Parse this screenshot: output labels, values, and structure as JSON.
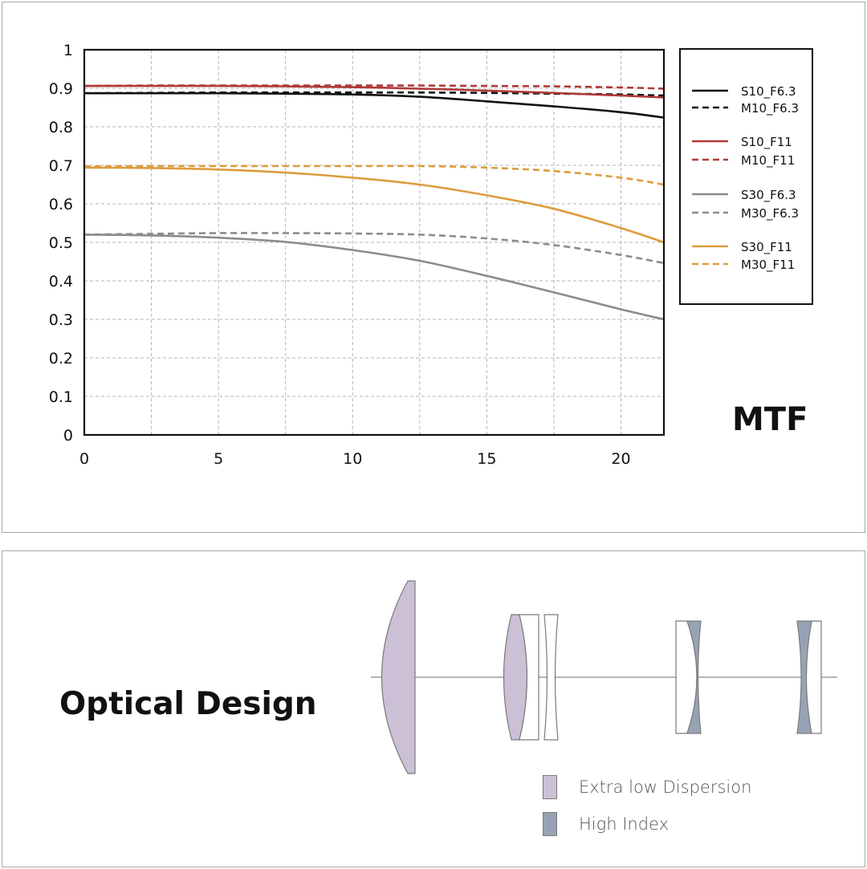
{
  "mtf_title": "MTF",
  "optical_title": "Optical Design",
  "chart_data": {
    "type": "line",
    "title": "MTF",
    "xlabel": "",
    "ylabel": "",
    "xlim": [
      0,
      21.6
    ],
    "ylim": [
      0,
      1
    ],
    "x_ticks": [
      "0",
      "5",
      "10",
      "15",
      "20"
    ],
    "x_tick_values": [
      0,
      5,
      10,
      15,
      20
    ],
    "y_ticks": [
      "0",
      "0.1",
      "0.2",
      "0.3",
      "0.4",
      "0.5",
      "0.6",
      "0.7",
      "0.8",
      "0.9",
      "1"
    ],
    "y_tick_values": [
      0,
      0.1,
      0.2,
      0.3,
      0.4,
      0.5,
      0.6,
      0.7,
      0.8,
      0.9,
      1
    ],
    "x_grid": [
      2.5,
      5,
      7.5,
      10,
      12.5,
      15,
      17.5,
      20
    ],
    "grid": true,
    "legend_placement": "right",
    "x": [
      0,
      2.5,
      5,
      7.5,
      10,
      12.5,
      15,
      17.5,
      20,
      21.6
    ],
    "series": [
      {
        "name": "S10_F6.3",
        "color": "#111111",
        "dashed": false,
        "values": [
          0.887,
          0.887,
          0.887,
          0.886,
          0.884,
          0.878,
          0.866,
          0.853,
          0.838,
          0.824
        ]
      },
      {
        "name": "M10_F6.3",
        "color": "#111111",
        "dashed": true,
        "values": [
          0.887,
          0.888,
          0.889,
          0.889,
          0.889,
          0.889,
          0.888,
          0.886,
          0.884,
          0.881
        ]
      },
      {
        "name": "S10_F11",
        "color": "#b03a36",
        "dashed": false,
        "values": [
          0.906,
          0.906,
          0.906,
          0.905,
          0.903,
          0.899,
          0.894,
          0.888,
          0.881,
          0.876
        ]
      },
      {
        "name": "M10_F11",
        "color": "#b03a36",
        "dashed": true,
        "values": [
          0.906,
          0.907,
          0.907,
          0.907,
          0.907,
          0.907,
          0.906,
          0.905,
          0.902,
          0.899
        ]
      },
      {
        "name": "S30_F6.3",
        "color": "#8c8c8c",
        "dashed": false,
        "values": [
          0.52,
          0.518,
          0.512,
          0.501,
          0.48,
          0.452,
          0.413,
          0.37,
          0.326,
          0.3
        ]
      },
      {
        "name": "M30_F6.3",
        "color": "#8c8c8c",
        "dashed": true,
        "values": [
          0.52,
          0.522,
          0.524,
          0.524,
          0.523,
          0.52,
          0.51,
          0.493,
          0.467,
          0.446
        ]
      },
      {
        "name": "S30_F11",
        "color": "#dd9c3c",
        "dashed": false,
        "values": [
          0.694,
          0.693,
          0.689,
          0.681,
          0.668,
          0.65,
          0.622,
          0.587,
          0.537,
          0.5
        ]
      },
      {
        "name": "M30_F11",
        "color": "#dd9c3c",
        "dashed": true,
        "values": [
          0.697,
          0.698,
          0.698,
          0.698,
          0.698,
          0.698,
          0.694,
          0.685,
          0.668,
          0.65
        ]
      }
    ]
  },
  "optical_legend": [
    {
      "label": "Extra low Dispersion",
      "color": "#cbc0d6"
    },
    {
      "label": "High Index",
      "color": "#97a3b5"
    }
  ]
}
